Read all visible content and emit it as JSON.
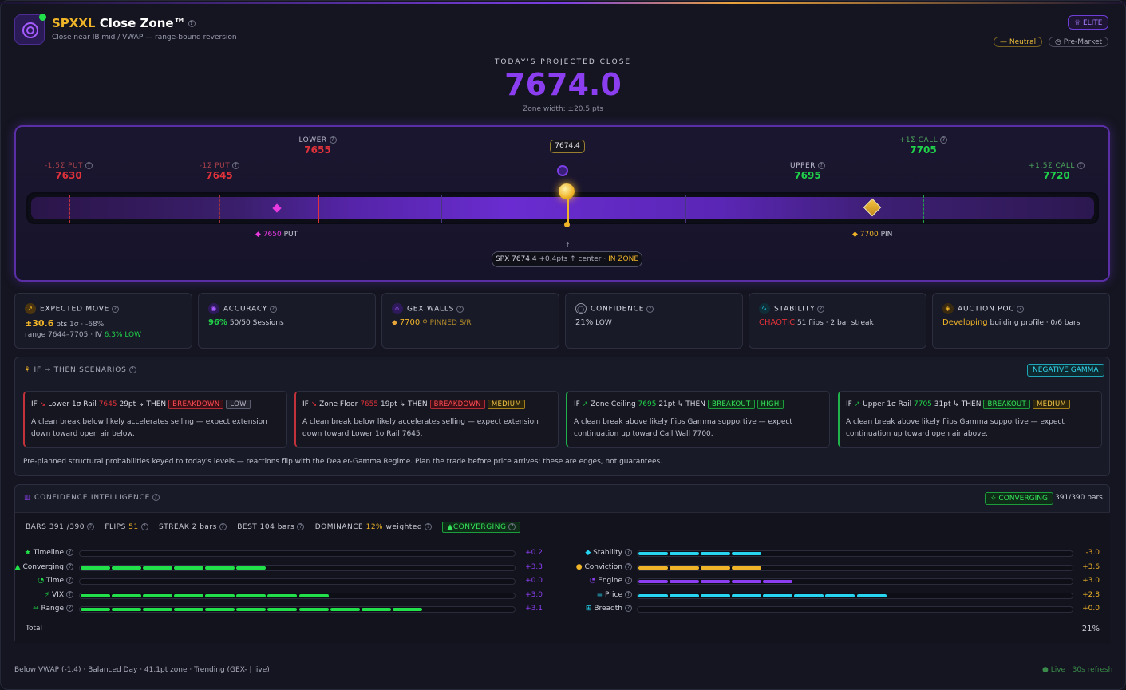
{
  "header": {
    "symbol": "SPXXL",
    "title": "Close Zone™",
    "subtitle": "Close near IB mid / VWAP — range-bound reversion",
    "elite": "ELITE",
    "bias": "Neutral",
    "session": "Pre-Market"
  },
  "projection": {
    "label": "TODAY'S PROJECTED CLOSE",
    "value": "7674.0",
    "zone_width": "Zone width: ±20.5 pts"
  },
  "zone": {
    "current_box": "7674.4",
    "levels": [
      {
        "key": "-1.5Σ PUT",
        "val": "7630"
      },
      {
        "key": "-1Σ PUT",
        "val": "7645"
      },
      {
        "key": "LOWER",
        "val": "7655"
      },
      {
        "key": "UPPER",
        "val": "7695"
      },
      {
        "key": "+1Σ CALL",
        "val": "7705"
      },
      {
        "key": "+1.5Σ CALL",
        "val": "7720"
      }
    ],
    "put_tag_val": "7650",
    "put_tag_lbl": "PUT",
    "pin_tag_val": "7700",
    "pin_tag_lbl": "PIN",
    "spx_text": "SPX 7674.4",
    "spx_delta": "+0.4pts ↑ center ·",
    "spx_status": "IN ZONE"
  },
  "cards": {
    "expected_move": {
      "title": "EXPECTED MOVE",
      "val": "±30.6",
      "unit": "pts",
      "sigma": "1σ · -68%",
      "range": "range 7644–7705 · IV",
      "iv": "6.3%",
      "iv_lbl": "LOW"
    },
    "accuracy": {
      "title": "ACCURACY",
      "pct": "96%",
      "sessions": "50/50 Sessions"
    },
    "gex_walls": {
      "title": "GEX WALLS",
      "val": "7700",
      "lbl": "PINNED S/R"
    },
    "confidence": {
      "title": "CONFIDENCE",
      "pct": "21%",
      "lbl": "LOW"
    },
    "stability": {
      "title": "STABILITY",
      "state": "CHAOTIC",
      "detail": "51 flips · 2 bar streak"
    },
    "auction_poc": {
      "title": "AUCTION POC",
      "state": "Developing",
      "detail": "building profile · 0/6 bars"
    }
  },
  "scenarios": {
    "title": "IF → THEN SCENARIOS",
    "regime": "NEGATIVE GAMMA",
    "items": [
      {
        "if": "IF",
        "arrow": "↘",
        "name": "Lower 1σ Rail",
        "level": "7645",
        "dist": "29pt",
        "then": "↳ THEN",
        "action": "BREAKDOWN",
        "prob": "LOW",
        "desc": "A clean break below likely accelerates selling — expect extension down toward open air below."
      },
      {
        "if": "IF",
        "arrow": "↘",
        "name": "Zone Floor",
        "level": "7655",
        "dist": "19pt",
        "then": "↳ THEN",
        "action": "BREAKDOWN",
        "prob": "MEDIUM",
        "desc": "A clean break below likely accelerates selling — expect extension down toward Lower 1σ Rail 7645."
      },
      {
        "if": "IF",
        "arrow": "↗",
        "name": "Zone Ceiling",
        "level": "7695",
        "dist": "21pt",
        "then": "↳ THEN",
        "action": "BREAKOUT",
        "prob": "HIGH",
        "desc": "A clean break above likely flips Gamma supportive — expect continuation up toward Call Wall 7700."
      },
      {
        "if": "IF",
        "arrow": "↗",
        "name": "Upper 1σ Rail",
        "level": "7705",
        "dist": "31pt",
        "then": "↳ THEN",
        "action": "BREAKOUT",
        "prob": "MEDIUM",
        "desc": "A clean break above likely flips Gamma supportive — expect continuation up toward open air above."
      }
    ],
    "footnote": "Pre-planned structural probabilities keyed to today's levels — reactions flip with the Dealer-Gamma Regime. Plan the trade before price arrives; these are edges, not guarantees."
  },
  "confidence_intel": {
    "title": "CONFIDENCE INTELLIGENCE",
    "badge": "CONVERGING",
    "bars": "391/390 bars",
    "stats": {
      "bars_lbl": "BARS",
      "bars_val": "391 /390",
      "flips_lbl": "FLIPS",
      "flips_val": "51",
      "streak_lbl": "STREAK",
      "streak_val": "2 bars",
      "best_lbl": "BEST",
      "best_val": "104 bars",
      "dom_lbl": "DOMINANCE",
      "dom_val": "12%",
      "dom_suffix": "weighted",
      "chip": "▲CONVERGING"
    },
    "left_rows": [
      {
        "icon": "★",
        "label": "Timeline",
        "value": "+0.2",
        "fill": 0.0,
        "color": "#22e04a"
      },
      {
        "icon": "▲",
        "label": "Converging",
        "value": "+3.3",
        "fill": 0.43,
        "color": "#22e04a"
      },
      {
        "icon": "◔",
        "label": "Time",
        "value": "+0.0",
        "fill": 0.0,
        "color": "#22e04a"
      },
      {
        "icon": "⚡",
        "label": "VIX",
        "value": "+3.0",
        "fill": 0.57,
        "color": "#22e04a"
      },
      {
        "icon": "↔",
        "label": "Range",
        "value": "+3.1",
        "fill": 0.79,
        "color": "#22e04a"
      }
    ],
    "right_rows": [
      {
        "icon": "◆",
        "label": "Stability",
        "value": "-3.0",
        "fill": 0.29,
        "color": "#27d5f0"
      },
      {
        "icon": "●",
        "label": "Conviction",
        "value": "+3.6",
        "fill": 0.29,
        "color": "#f0b429"
      },
      {
        "icon": "◔",
        "label": "Engine",
        "value": "+3.0",
        "fill": 0.36,
        "color": "#8a3ef0"
      },
      {
        "icon": "≡",
        "label": "Price",
        "value": "+2.8",
        "fill": 0.57,
        "color": "#27d5f0"
      },
      {
        "icon": "⊞",
        "label": "Breadth",
        "value": "+0.0",
        "fill": 0.0,
        "color": "#27d5f0"
      }
    ],
    "total_lbl": "Total",
    "total_val": "21%"
  },
  "status": {
    "text": "Below VWAP (-1.4) · Balanced Day · 41.1pt zone · Trending (GEX- | live)",
    "live": "● Live · 30s refresh"
  }
}
